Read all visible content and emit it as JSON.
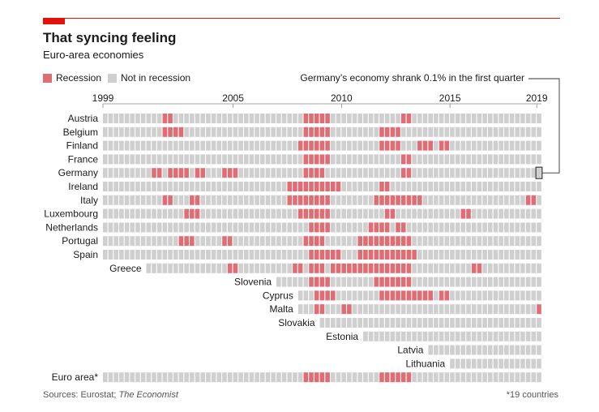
{
  "header": {
    "title": "That syncing feeling",
    "subtitle": "Euro-area economies"
  },
  "legend": {
    "recession_label": "Recession",
    "not_recession_label": "Not in recession"
  },
  "annotation": "Germany’s economy shrank 0.1% in the first quarter",
  "footer": {
    "source_prefix": "Sources: Eurostat; ",
    "source_italic": "The Economist",
    "footnote": "*19 countries"
  },
  "colors": {
    "recession": "#e06c74",
    "not_recession": "#cfcfcf",
    "highlight_stroke": "#333333",
    "accent": "#e3120b"
  },
  "chart_data": {
    "type": "heatmap",
    "title": "That syncing feeling",
    "subtitle": "Euro-area economies",
    "x_unit": "quarter",
    "x_range": [
      "1999Q1",
      "2019Q1"
    ],
    "x_tick_labels": [
      "1999",
      "2005",
      "2010",
      "2015",
      "2019"
    ],
    "legend": [
      "Recession",
      "Not in recession"
    ],
    "highlight": {
      "series": "Germany",
      "quarter": "2019Q1",
      "note": "Germany’s economy shrank 0.1% in the first quarter"
    },
    "series": [
      {
        "name": "Austria",
        "start": "1999Q1",
        "recessions": [
          [
            "2001Q4",
            "2002Q1"
          ],
          [
            "2008Q2",
            "2009Q2"
          ],
          [
            "2012Q4",
            "2013Q1"
          ]
        ]
      },
      {
        "name": "Belgium",
        "start": "1999Q1",
        "recessions": [
          [
            "2001Q4",
            "2002Q3"
          ],
          [
            "2008Q2",
            "2009Q2"
          ],
          [
            "2011Q4",
            "2012Q3"
          ]
        ]
      },
      {
        "name": "Finland",
        "start": "1999Q1",
        "recessions": [
          [
            "2008Q1",
            "2009Q2"
          ],
          [
            "2011Q4",
            "2012Q3"
          ],
          [
            "2013Q3",
            "2014Q1"
          ],
          [
            "2014Q3",
            "2014Q4"
          ]
        ]
      },
      {
        "name": "France",
        "start": "1999Q1",
        "recessions": [
          [
            "2008Q2",
            "2009Q2"
          ],
          [
            "2012Q4",
            "2013Q1"
          ]
        ]
      },
      {
        "name": "Germany",
        "start": "1999Q1",
        "recessions": [
          [
            "2001Q2",
            "2001Q3"
          ],
          [
            "2002Q1",
            "2002Q4"
          ],
          [
            "2003Q2",
            "2003Q3"
          ],
          [
            "2004Q3",
            "2005Q1"
          ],
          [
            "2008Q2",
            "2009Q1"
          ],
          [
            "2012Q4",
            "2013Q1"
          ]
        ]
      },
      {
        "name": "Ireland",
        "start": "1999Q1",
        "recessions": [
          [
            "2007Q3",
            "2007Q4"
          ],
          [
            "2008Q1",
            "2009Q4"
          ],
          [
            "2011Q4",
            "2012Q1"
          ]
        ]
      },
      {
        "name": "Italy",
        "start": "1999Q1",
        "recessions": [
          [
            "2001Q4",
            "2002Q1"
          ],
          [
            "2003Q1",
            "2003Q2"
          ],
          [
            "2007Q3",
            "2008Q2"
          ],
          [
            "2008Q2",
            "2009Q2"
          ],
          [
            "2011Q3",
            "2013Q3"
          ],
          [
            "2018Q3",
            "2018Q4"
          ]
        ]
      },
      {
        "name": "Luxembourg",
        "start": "1999Q1",
        "recessions": [
          [
            "2002Q4",
            "2003Q2"
          ],
          [
            "2008Q1",
            "2009Q2"
          ],
          [
            "2012Q1",
            "2012Q2"
          ],
          [
            "2015Q3",
            "2015Q4"
          ]
        ]
      },
      {
        "name": "Netherlands",
        "start": "1999Q1",
        "recessions": [
          [
            "2008Q3",
            "2009Q2"
          ],
          [
            "2011Q2",
            "2012Q1"
          ],
          [
            "2012Q3",
            "2012Q4"
          ]
        ]
      },
      {
        "name": "Portugal",
        "start": "1999Q1",
        "recessions": [
          [
            "2002Q3",
            "2003Q1"
          ],
          [
            "2004Q3",
            "2004Q4"
          ],
          [
            "2008Q2",
            "2009Q1"
          ],
          [
            "2010Q4",
            "2013Q1"
          ]
        ]
      },
      {
        "name": "Spain",
        "start": "1999Q1",
        "recessions": [
          [
            "2008Q3",
            "2009Q4"
          ],
          [
            "2010Q4",
            "2013Q2"
          ]
        ]
      },
      {
        "name": "Greece",
        "start": "2001Q1",
        "recessions": [
          [
            "2004Q4",
            "2005Q1"
          ],
          [
            "2007Q4",
            "2008Q1"
          ],
          [
            "2008Q3",
            "2009Q1"
          ],
          [
            "2009Q3",
            "2013Q1"
          ],
          [
            "2016Q1",
            "2016Q2"
          ]
        ]
      },
      {
        "name": "Slovenia",
        "start": "2007Q1",
        "recessions": [
          [
            "2008Q3",
            "2009Q2"
          ],
          [
            "2011Q3",
            "2013Q1"
          ]
        ]
      },
      {
        "name": "Cyprus",
        "start": "2008Q1",
        "recessions": [
          [
            "2008Q4",
            "2009Q3"
          ],
          [
            "2011Q4",
            "2014Q1"
          ],
          [
            "2014Q3",
            "2014Q4"
          ]
        ]
      },
      {
        "name": "Malta",
        "start": "2008Q1",
        "recessions": [
          [
            "2008Q4",
            "2009Q1"
          ],
          [
            "2010Q1",
            "2010Q2"
          ],
          [
            "2019Q1",
            "2019Q2"
          ]
        ]
      },
      {
        "name": "Slovakia",
        "start": "2009Q1",
        "recessions": []
      },
      {
        "name": "Estonia",
        "start": "2011Q1",
        "recessions": []
      },
      {
        "name": "Latvia",
        "start": "2014Q1",
        "recessions": []
      },
      {
        "name": "Lithuania",
        "start": "2015Q1",
        "recessions": []
      },
      {
        "name": "Euro area*",
        "start": "1999Q1",
        "recessions": [
          [
            "2008Q2",
            "2009Q2"
          ],
          [
            "2011Q4",
            "2013Q1"
          ]
        ]
      }
    ]
  }
}
